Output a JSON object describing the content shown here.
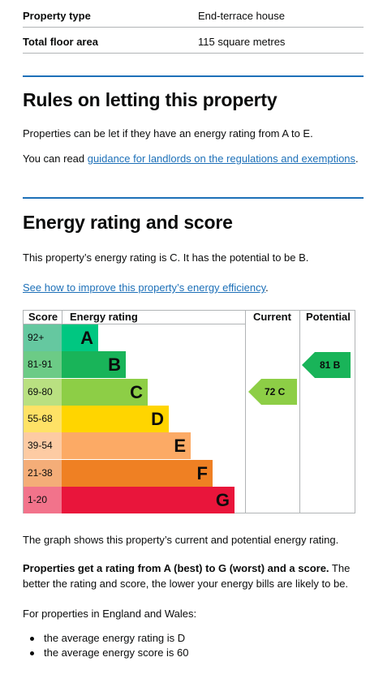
{
  "summary": [
    {
      "key": "Property type",
      "value": "End-terrace house"
    },
    {
      "key": "Total floor area",
      "value": "115 square metres"
    }
  ],
  "letting": {
    "heading": "Rules on letting this property",
    "p1": "Properties can be let if they have an energy rating from A to E.",
    "p2_prefix": "You can read ",
    "p2_link": "guidance for landlords on the regulations and exemptions",
    "p2_suffix": "."
  },
  "energy": {
    "heading": "Energy rating and score",
    "p1": "This property’s energy rating is C. It has the potential to be B.",
    "improve_link": "See how to improve this property’s energy efficiency",
    "improve_suffix": "."
  },
  "epc": {
    "headers": {
      "score": "Score",
      "rating": "Energy rating",
      "current": "Current",
      "potential": "Potential"
    },
    "bands": [
      {
        "range": "92+",
        "letter": "A",
        "color": "#00c781"
      },
      {
        "range": "81-91",
        "letter": "B",
        "color": "#19b459"
      },
      {
        "range": "69-80",
        "letter": "C",
        "color": "#8dce46"
      },
      {
        "range": "55-68",
        "letter": "D",
        "color": "#ffd500"
      },
      {
        "range": "39-54",
        "letter": "E",
        "color": "#fcaa65"
      },
      {
        "range": "21-38",
        "letter": "F",
        "color": "#ef8023"
      },
      {
        "range": "1-20",
        "letter": "G",
        "color": "#e9153b"
      }
    ],
    "current": {
      "label": "72 C",
      "score": 72,
      "band": "C",
      "color": "#8dce46"
    },
    "potential": {
      "label": "81 B",
      "score": 81,
      "band": "B",
      "color": "#19b459"
    }
  },
  "after": {
    "p1": "The graph shows this property’s current and potential energy rating.",
    "p2_bold": "Properties get a rating from A (best) to G (worst) and a score.",
    "p2_rest": " The better the rating and score, the lower your energy bills are likely to be.",
    "p3": "For properties in England and Wales:",
    "bullets": [
      "the average energy rating is D",
      "the average energy score is 60"
    ]
  }
}
